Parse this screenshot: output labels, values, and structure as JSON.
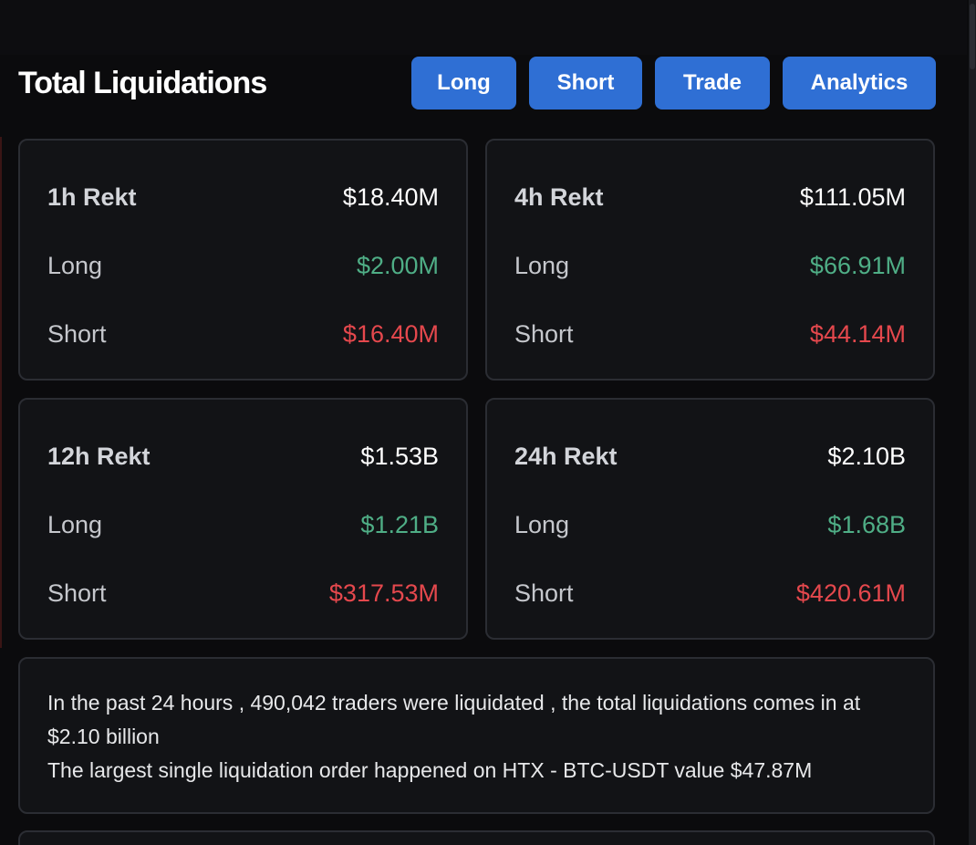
{
  "header": {
    "title": "Total Liquidations",
    "buttons": {
      "long": "Long",
      "short": "Short",
      "trade": "Trade",
      "analytics": "Analytics"
    }
  },
  "cards": [
    {
      "period": "1h Rekt",
      "total": "$18.40M",
      "long_label": "Long",
      "long_value": "$2.00M",
      "short_label": "Short",
      "short_value": "$16.40M"
    },
    {
      "period": "4h Rekt",
      "total": "$111.05M",
      "long_label": "Long",
      "long_value": "$66.91M",
      "short_label": "Short",
      "short_value": "$44.14M"
    },
    {
      "period": "12h Rekt",
      "total": "$1.53B",
      "long_label": "Long",
      "long_value": "$1.21B",
      "short_label": "Short",
      "short_value": "$317.53M"
    },
    {
      "period": "24h Rekt",
      "total": "$2.10B",
      "long_label": "Long",
      "long_value": "$1.68B",
      "short_label": "Short",
      "short_value": "$420.61M"
    }
  ],
  "summary": {
    "line1": "In the past 24 hours , 490,042 traders were liquidated , the total liquidations comes in at $2.10 billion",
    "line2": "The largest single liquidation order happened on HTX - BTC-USDT value $47.87M"
  },
  "colors": {
    "accent": "#2f6fd4",
    "long": "#4fae86",
    "short": "#e5484d",
    "background": "#0b0b0d",
    "card": "#121316"
  }
}
